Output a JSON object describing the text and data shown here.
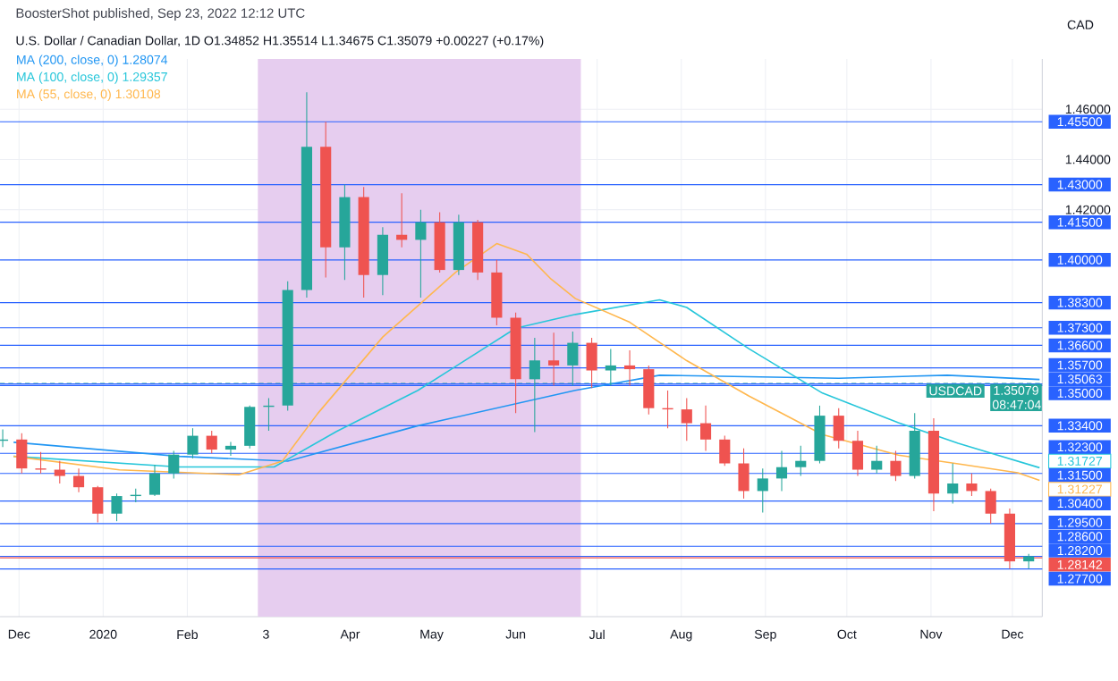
{
  "chart_data": {
    "type": "candlestick",
    "title": "U.S. Dollar / Canadian Dollar, 1D O1.34852 H1.35514 L1.34675 C1.35079 +0.00227 (+0.17%)",
    "subtitle": "BoosterShot published, Sep 23, 2022 12:12 UTC",
    "ylabel": "CAD",
    "x": [
      "2019-11-25",
      "2019-12-02",
      "2019-12-09",
      "2019-12-16",
      "2019-12-23",
      "2019-12-30",
      "2020-01-06",
      "2020-01-13",
      "2020-01-20",
      "2020-01-27",
      "2020-02-03",
      "2020-02-10",
      "2020-02-17",
      "2020-02-24",
      "2020-03-02",
      "2020-03-09",
      "2020-03-16",
      "2020-03-23",
      "2020-03-30",
      "2020-04-06",
      "2020-04-13",
      "2020-04-20",
      "2020-04-27",
      "2020-05-04",
      "2020-05-11",
      "2020-05-18",
      "2020-05-25",
      "2020-06-01",
      "2020-06-08",
      "2020-06-15",
      "2020-06-22",
      "2020-06-29",
      "2020-07-06",
      "2020-07-13",
      "2020-07-20",
      "2020-07-27",
      "2020-08-03",
      "2020-08-10",
      "2020-08-17",
      "2020-08-24",
      "2020-08-31",
      "2020-09-07",
      "2020-09-14",
      "2020-09-21",
      "2020-09-28",
      "2020-10-05",
      "2020-10-12",
      "2020-10-19",
      "2020-10-26",
      "2020-11-02",
      "2020-11-09",
      "2020-11-16",
      "2020-11-23",
      "2020-11-30",
      "2020-12-07"
    ],
    "ohlc": [
      [
        1.328,
        1.3325,
        1.3255,
        1.3285
      ],
      [
        1.3285,
        1.331,
        1.315,
        1.317
      ],
      [
        1.317,
        1.3235,
        1.315,
        1.3165
      ],
      [
        1.3165,
        1.32,
        1.311,
        1.314
      ],
      [
        1.314,
        1.317,
        1.3075,
        1.3095
      ],
      [
        1.3095,
        1.31,
        1.2955,
        1.299
      ],
      [
        1.299,
        1.307,
        1.296,
        1.306
      ],
      [
        1.306,
        1.309,
        1.3035,
        1.3065
      ],
      [
        1.3065,
        1.3185,
        1.306,
        1.315
      ],
      [
        1.315,
        1.324,
        1.313,
        1.3225
      ],
      [
        1.3225,
        1.333,
        1.321,
        1.33
      ],
      [
        1.33,
        1.332,
        1.323,
        1.3245
      ],
      [
        1.3245,
        1.3275,
        1.322,
        1.326
      ],
      [
        1.326,
        1.342,
        1.325,
        1.3415
      ],
      [
        1.3415,
        1.345,
        1.332,
        1.342
      ],
      [
        1.342,
        1.3915,
        1.34,
        1.388
      ],
      [
        1.388,
        1.4667,
        1.385,
        1.445
      ],
      [
        1.445,
        1.455,
        1.393,
        1.405
      ],
      [
        1.405,
        1.43,
        1.392,
        1.425
      ],
      [
        1.425,
        1.429,
        1.385,
        1.394
      ],
      [
        1.394,
        1.413,
        1.386,
        1.41
      ],
      [
        1.41,
        1.4265,
        1.405,
        1.408
      ],
      [
        1.408,
        1.42,
        1.385,
        1.415
      ],
      [
        1.415,
        1.419,
        1.395,
        1.396
      ],
      [
        1.396,
        1.418,
        1.394,
        1.415
      ],
      [
        1.415,
        1.416,
        1.392,
        1.395
      ],
      [
        1.395,
        1.4,
        1.374,
        1.377
      ],
      [
        1.377,
        1.379,
        1.339,
        1.3525
      ],
      [
        1.3525,
        1.369,
        1.3315,
        1.36
      ],
      [
        1.36,
        1.371,
        1.35,
        1.358
      ],
      [
        1.358,
        1.3715,
        1.35,
        1.367
      ],
      [
        1.367,
        1.369,
        1.349,
        1.356
      ],
      [
        1.356,
        1.3645,
        1.35,
        1.358
      ],
      [
        1.358,
        1.364,
        1.35,
        1.3565
      ],
      [
        1.3565,
        1.358,
        1.3385,
        1.341
      ],
      [
        1.341,
        1.348,
        1.333,
        1.3405
      ],
      [
        1.3405,
        1.345,
        1.328,
        1.335
      ],
      [
        1.335,
        1.342,
        1.324,
        1.3285
      ],
      [
        1.3285,
        1.33,
        1.318,
        1.319
      ],
      [
        1.319,
        1.325,
        1.305,
        1.308
      ],
      [
        1.308,
        1.317,
        1.2994,
        1.313
      ],
      [
        1.313,
        1.324,
        1.308,
        1.3175
      ],
      [
        1.3175,
        1.326,
        1.314,
        1.32
      ],
      [
        1.32,
        1.342,
        1.319,
        1.338
      ],
      [
        1.338,
        1.341,
        1.325,
        1.328
      ],
      [
        1.328,
        1.332,
        1.314,
        1.3165
      ],
      [
        1.3165,
        1.326,
        1.315,
        1.32
      ],
      [
        1.32,
        1.324,
        1.312,
        1.314
      ],
      [
        1.314,
        1.339,
        1.313,
        1.332
      ],
      [
        1.332,
        1.337,
        1.3,
        1.307
      ],
      [
        1.307,
        1.319,
        1.303,
        1.311
      ],
      [
        1.311,
        1.315,
        1.306,
        1.308
      ],
      [
        1.308,
        1.309,
        1.295,
        1.299
      ],
      [
        1.299,
        1.301,
        1.277,
        1.28
      ],
      [
        1.28,
        1.283,
        1.277,
        1.282
      ]
    ],
    "colors": [
      "#26a69a",
      "#ef5350",
      "#ef5350",
      "#ef5350",
      "#ef5350",
      "#ef5350",
      "#26a69a",
      "#26a69a",
      "#26a69a",
      "#26a69a",
      "#26a69a",
      "#ef5350",
      "#26a69a",
      "#26a69a",
      "#26a69a",
      "#26a69a",
      "#26a69a",
      "#ef5350",
      "#26a69a",
      "#ef5350",
      "#26a69a",
      "#ef5350",
      "#26a69a",
      "#ef5350",
      "#26a69a",
      "#ef5350",
      "#ef5350",
      "#ef5350",
      "#26a69a",
      "#ef5350",
      "#26a69a",
      "#ef5350",
      "#26a69a",
      "#ef5350",
      "#ef5350",
      "#ef5350",
      "#ef5350",
      "#ef5350",
      "#ef5350",
      "#ef5350",
      "#26a69a",
      "#26a69a",
      "#26a69a",
      "#26a69a",
      "#ef5350",
      "#ef5350",
      "#26a69a",
      "#ef5350",
      "#26a69a",
      "#ef5350",
      "#26a69a",
      "#ef5350",
      "#ef5350",
      "#ef5350",
      "#26a69a"
    ],
    "series": [
      {
        "type": "line",
        "name": "MA (200, close, 0) 1.28074",
        "color": "#2196f3",
        "x": [
          "2019-11-29",
          "2020-01-29",
          "2020-03-09",
          "2020-04-26",
          "2020-06-23",
          "2020-07-24",
          "2020-09-28",
          "2020-11-07",
          "2020-12-11"
        ],
        "values": [
          1.3274,
          1.3218,
          1.3199,
          1.334,
          1.3481,
          1.3541,
          1.3529,
          1.3541,
          1.3524
        ]
      },
      {
        "type": "line",
        "name": "MA (100, close, 0) 1.29357",
        "color": "#26c6da",
        "x": [
          "2019-11-29",
          "2020-01-29",
          "2020-03-04",
          "2020-03-27",
          "2020-04-26",
          "2020-06-01",
          "2020-06-23",
          "2020-07-24",
          "2020-08-03",
          "2020-08-26",
          "2020-09-22",
          "2020-10-20",
          "2020-11-11",
          "2020-12-11"
        ],
        "values": [
          1.3218,
          1.3176,
          1.3176,
          1.3317,
          1.3481,
          1.3728,
          1.3783,
          1.3841,
          1.3811,
          1.3646,
          1.347,
          1.3352,
          1.327,
          1.31727
        ],
        "value_labels": [
          null,
          null,
          null,
          null,
          null,
          null,
          null,
          null,
          null,
          null,
          null,
          null,
          null,
          "1.31727"
        ]
      },
      {
        "type": "line",
        "name": "MA (55, close, 0) 1.30108",
        "color": "#ffb74d",
        "x": [
          "2019-11-29",
          "2020-01-07",
          "2020-02-20",
          "2020-03-07",
          "2020-03-20",
          "2020-04-13",
          "2020-05-10",
          "2020-05-25",
          "2020-06-05",
          "2020-06-14",
          "2020-06-23",
          "2020-07-13",
          "2020-08-03",
          "2020-08-26",
          "2020-09-22",
          "2020-10-20",
          "2020-11-11",
          "2020-12-03",
          "2020-12-11"
        ],
        "values": [
          1.3218,
          1.3164,
          1.3145,
          1.3199,
          1.3388,
          1.3693,
          1.3952,
          1.4065,
          1.4023,
          1.3924,
          1.3846,
          1.3752,
          1.3599,
          1.3458,
          1.3305,
          1.3223,
          1.3188,
          1.3153,
          1.31227
        ],
        "value_labels": [
          null,
          null,
          null,
          null,
          null,
          null,
          null,
          null,
          null,
          null,
          null,
          null,
          null,
          null,
          null,
          null,
          null,
          null,
          "1.31227"
        ]
      }
    ],
    "ref_lines": [
      {
        "axis": "y",
        "value": 1.455,
        "label": "1.45500",
        "color": "#2962ff"
      },
      {
        "axis": "y",
        "value": 1.43,
        "label": "1.43000",
        "color": "#2962ff"
      },
      {
        "axis": "y",
        "value": 1.415,
        "label": "1.41500",
        "color": "#2962ff"
      },
      {
        "axis": "y",
        "value": 1.4,
        "label": "1.40000",
        "color": "#2962ff"
      },
      {
        "axis": "y",
        "value": 1.383,
        "label": "1.38300",
        "color": "#2962ff"
      },
      {
        "axis": "y",
        "value": 1.373,
        "label": "1.37300",
        "color": "#2962ff"
      },
      {
        "axis": "y",
        "value": 1.366,
        "label": "1.36600",
        "color": "#2962ff"
      },
      {
        "axis": "y",
        "value": 1.357,
        "label": "1.35700",
        "color": "#2962ff"
      },
      {
        "axis": "y",
        "value": 1.35079,
        "label": "1.35079 08:47:04",
        "color": "#26a69a",
        "line_style": "dashed"
      },
      {
        "axis": "y",
        "value": 1.35063,
        "label": "1.35063",
        "color": "#2962ff"
      },
      {
        "axis": "y",
        "value": 1.35,
        "label": "1.35000",
        "color": "#2962ff"
      },
      {
        "axis": "y",
        "value": 1.334,
        "label": "1.33400",
        "color": "#2962ff"
      },
      {
        "axis": "y",
        "value": 1.323,
        "label": "1.32300",
        "color": "#2962ff"
      },
      {
        "axis": "y",
        "value": 1.315,
        "label": "1.31500",
        "color": "#2962ff"
      },
      {
        "axis": "y",
        "value": 1.304,
        "label": "1.30400",
        "color": "#2962ff"
      },
      {
        "axis": "y",
        "value": 1.295,
        "label": "1.29500",
        "color": "#2962ff"
      },
      {
        "axis": "y",
        "value": 1.286,
        "label": "1.28600",
        "color": "#2962ff"
      },
      {
        "axis": "y",
        "value": 1.282,
        "label": "1.28200",
        "color": "#2962ff"
      },
      {
        "axis": "y",
        "value": 1.28142,
        "label": "1.28142",
        "color": "#ef5350"
      },
      {
        "axis": "y",
        "value": 1.277,
        "label": "1.27700",
        "color": "#2962ff"
      }
    ],
    "bands": [
      {
        "axis": "x",
        "from": "2020-02-27",
        "to": "2020-06-25",
        "color": "#e6cdef"
      }
    ],
    "annotations": [
      {
        "text": "USDCAD",
        "x": "2020-11-10",
        "y": 1.35079
      }
    ],
    "xlim": [
      "2019-11-24",
      "2020-12-12"
    ],
    "ylim": [
      1.258,
      1.48
    ],
    "xticks": [
      {
        "value": "2019-12-01",
        "label": "Dec"
      },
      {
        "value": "2020-01-01",
        "label": "2020"
      },
      {
        "value": "2020-02-01",
        "label": "Feb"
      },
      {
        "value": "2020-03-01",
        "label": "3"
      },
      {
        "value": "2020-04-01",
        "label": "Apr"
      },
      {
        "value": "2020-05-01",
        "label": "May"
      },
      {
        "value": "2020-06-01",
        "label": "Jun"
      },
      {
        "value": "2020-07-01",
        "label": "Jul"
      },
      {
        "value": "2020-08-01",
        "label": "Aug"
      },
      {
        "value": "2020-09-01",
        "label": "Sep"
      },
      {
        "value": "2020-10-01",
        "label": "Oct"
      },
      {
        "value": "2020-11-01",
        "label": "Nov"
      },
      {
        "value": "2020-12-01",
        "label": "Dec"
      }
    ],
    "yticks": [
      {
        "value": 1.42,
        "label": "1.42000"
      },
      {
        "value": 1.44,
        "label": "1.44000"
      },
      {
        "value": 1.46,
        "label": "1.46000"
      }
    ],
    "grid": true,
    "legend": "top left"
  }
}
